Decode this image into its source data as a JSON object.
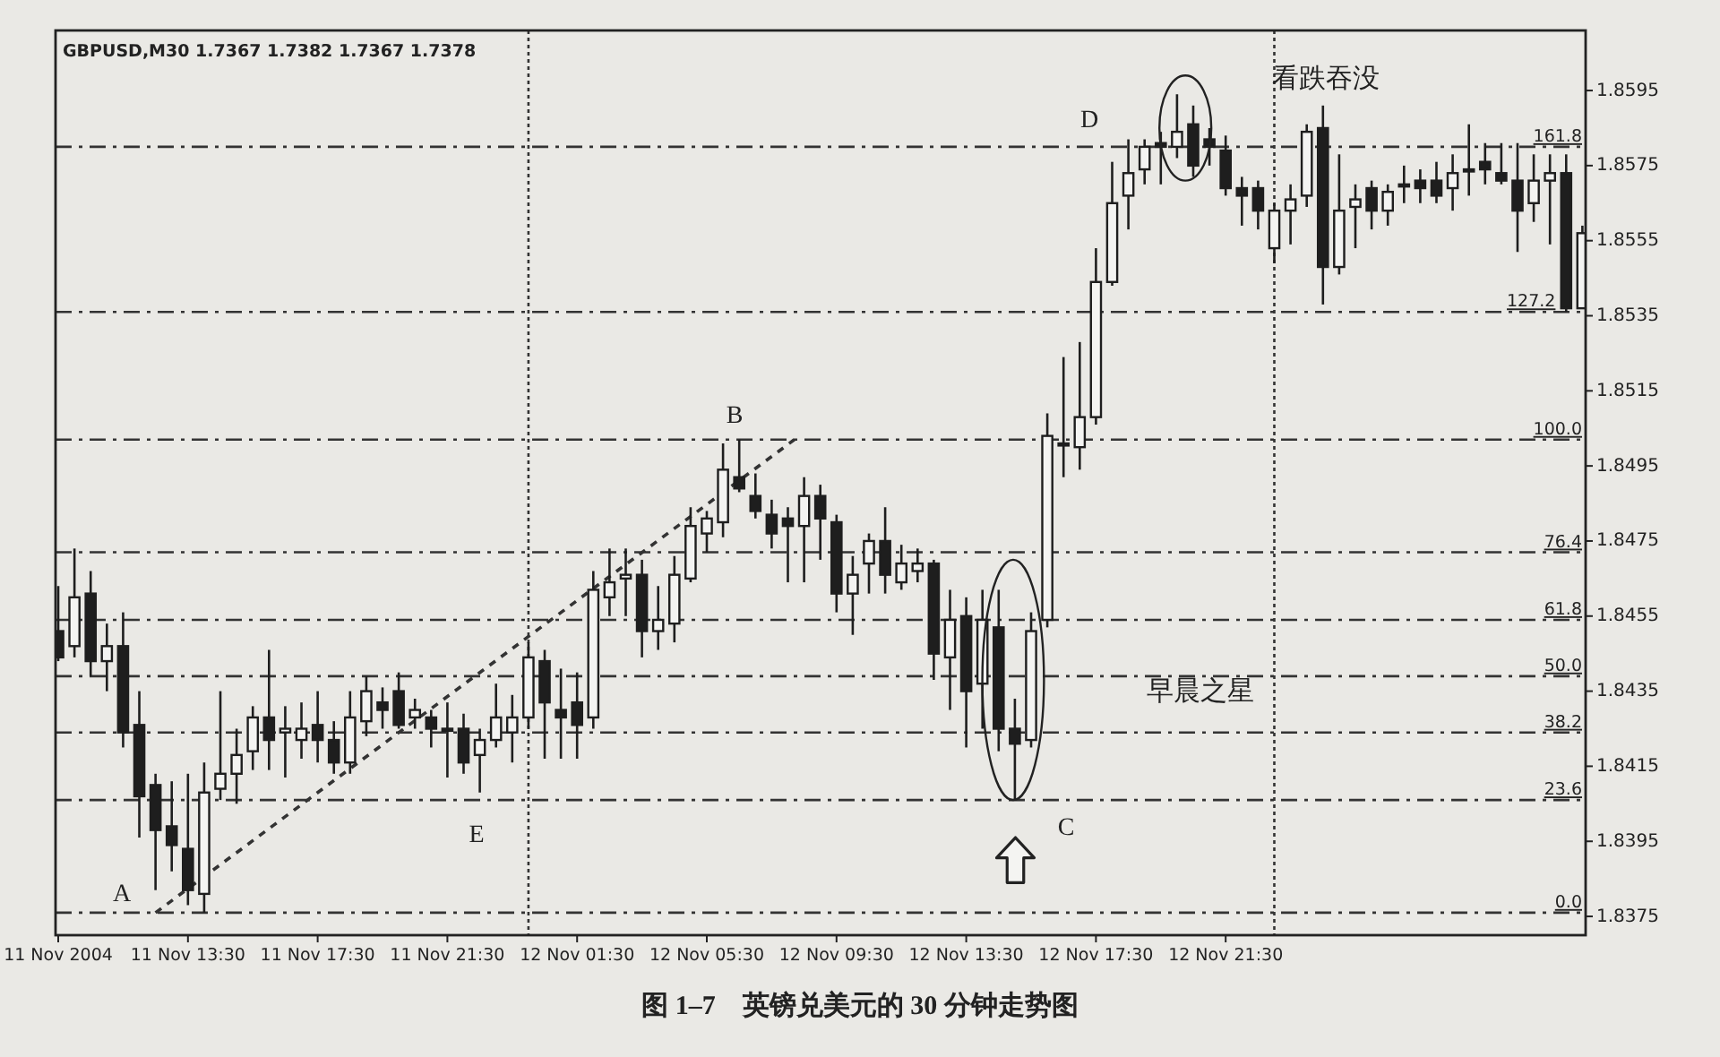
{
  "chart_data": {
    "type": "candlestick",
    "title": "图 1–7　英镑兑美元的 30 分钟走势图",
    "annotations": [
      "GBPUSD,M30  1.7367 1.7382 1.7367 1.7378",
      "A",
      "B",
      "C",
      "D",
      "E",
      "看跌吞没",
      "早晨之星",
      "0.0",
      "23.6",
      "38.2",
      "50.0",
      "61.8",
      "76.4",
      "100.0",
      "127.2",
      "161.8"
    ],
    "color": "#1e1e1e",
    "x": [
      "2004-11-11T09:30",
      "2004-11-11T10:00",
      "2004-11-11T10:30",
      "2004-11-11T11:00",
      "2004-11-11T11:30",
      "2004-11-11T12:00",
      "2004-11-11T12:30",
      "2004-11-11T13:00",
      "2004-11-11T13:30",
      "2004-11-11T14:00",
      "2004-11-11T14:30",
      "2004-11-11T15:00",
      "2004-11-11T15:30",
      "2004-11-11T16:00",
      "2004-11-11T16:30",
      "2004-11-11T17:00",
      "2004-11-11T17:30",
      "2004-11-11T18:00",
      "2004-11-11T18:30",
      "2004-11-11T19:00",
      "2004-11-11T19:30",
      "2004-11-11T20:00",
      "2004-11-11T20:30",
      "2004-11-11T21:00",
      "2004-11-11T21:30",
      "2004-11-11T22:00",
      "2004-11-11T22:30",
      "2004-11-11T23:00",
      "2004-11-11T23:30",
      "2004-11-12T00:00",
      "2004-11-12T00:30",
      "2004-11-12T01:00",
      "2004-11-12T01:30",
      "2004-11-12T02:00",
      "2004-11-12T02:30",
      "2004-11-12T03:00",
      "2004-11-12T03:30",
      "2004-11-12T04:00",
      "2004-11-12T04:30",
      "2004-11-12T05:00",
      "2004-11-12T05:30",
      "2004-11-12T06:00",
      "2004-11-12T06:30",
      "2004-11-12T07:00",
      "2004-11-12T07:30",
      "2004-11-12T08:00",
      "2004-11-12T08:30",
      "2004-11-12T09:00",
      "2004-11-12T09:30",
      "2004-11-12T10:00",
      "2004-11-12T10:30",
      "2004-11-12T11:00",
      "2004-11-12T11:30",
      "2004-11-12T12:00",
      "2004-11-12T12:30",
      "2004-11-12T13:00",
      "2004-11-12T13:30",
      "2004-11-12T14:00",
      "2004-11-12T14:30",
      "2004-11-12T15:00",
      "2004-11-12T15:30",
      "2004-11-12T16:00",
      "2004-11-12T16:30",
      "2004-11-12T17:00",
      "2004-11-12T17:30",
      "2004-11-12T18:00",
      "2004-11-12T18:30",
      "2004-11-12T19:00",
      "2004-11-12T19:30",
      "2004-11-12T20:00",
      "2004-11-12T20:30",
      "2004-11-12T21:00",
      "2004-11-12T21:30",
      "2004-11-12T22:00",
      "2004-11-12T22:30",
      "2004-11-12T23:00",
      "2004-11-12T23:30",
      "2004-11-13T00:00",
      "2004-11-13T00:30",
      "2004-11-13T01:00",
      "2004-11-13T01:30",
      "2004-11-13T02:00",
      "2004-11-13T02:30",
      "2004-11-13T03:00",
      "2004-11-13T03:30",
      "2004-11-13T04:00",
      "2004-11-13T04:30",
      "2004-11-13T05:00",
      "2004-11-13T05:30",
      "2004-11-13T06:00",
      "2004-11-13T06:30",
      "2004-11-13T07:00",
      "2004-11-13T07:30",
      "2004-11-13T08:00",
      "2004-11-13T08:30"
    ],
    "ohlc": [
      [
        1.8451,
        1.8463,
        1.8443,
        1.8444
      ],
      [
        1.8447,
        1.8473,
        1.8444,
        1.846
      ],
      [
        1.8461,
        1.8467,
        1.8439,
        1.8443
      ],
      [
        1.8443,
        1.8453,
        1.8435,
        1.8447
      ],
      [
        1.8447,
        1.8456,
        1.842,
        1.8424
      ],
      [
        1.8426,
        1.8435,
        1.8396,
        1.8407
      ],
      [
        1.841,
        1.8413,
        1.8382,
        1.8398
      ],
      [
        1.8399,
        1.8411,
        1.8387,
        1.8394
      ],
      [
        1.8393,
        1.8413,
        1.8378,
        1.8382
      ],
      [
        1.8381,
        1.8416,
        1.8376,
        1.8408
      ],
      [
        1.8409,
        1.8435,
        1.8406,
        1.8413
      ],
      [
        1.8413,
        1.8425,
        1.8405,
        1.8418
      ],
      [
        1.8419,
        1.8431,
        1.8414,
        1.8428
      ],
      [
        1.8428,
        1.8446,
        1.8414,
        1.8422
      ],
      [
        1.8424,
        1.8431,
        1.8412,
        1.8425
      ],
      [
        1.8422,
        1.8432,
        1.8417,
        1.8425
      ],
      [
        1.8426,
        1.8435,
        1.8416,
        1.8422
      ],
      [
        1.8422,
        1.8427,
        1.8413,
        1.8416
      ],
      [
        1.8416,
        1.8435,
        1.8413,
        1.8428
      ],
      [
        1.8427,
        1.8439,
        1.8423,
        1.8435
      ],
      [
        1.8432,
        1.8436,
        1.8425,
        1.843
      ],
      [
        1.8435,
        1.844,
        1.8425,
        1.8426
      ],
      [
        1.8428,
        1.8433,
        1.8425,
        1.843
      ],
      [
        1.8428,
        1.843,
        1.842,
        1.8425
      ],
      [
        1.8425,
        1.8432,
        1.8412,
        1.8425
      ],
      [
        1.8425,
        1.8429,
        1.8413,
        1.8416
      ],
      [
        1.8418,
        1.8425,
        1.8408,
        1.8422
      ],
      [
        1.8422,
        1.8437,
        1.842,
        1.8428
      ],
      [
        1.8424,
        1.8434,
        1.8416,
        1.8428
      ],
      [
        1.8428,
        1.8448,
        1.8425,
        1.8444
      ],
      [
        1.8443,
        1.8446,
        1.8417,
        1.8432
      ],
      [
        1.843,
        1.8441,
        1.8417,
        1.8428
      ],
      [
        1.8432,
        1.844,
        1.8417,
        1.8426
      ],
      [
        1.8428,
        1.8467,
        1.8425,
        1.8462
      ],
      [
        1.846,
        1.8473,
        1.8455,
        1.8464
      ],
      [
        1.8465,
        1.8473,
        1.8455,
        1.8466
      ],
      [
        1.8466,
        1.847,
        1.8444,
        1.8451
      ],
      [
        1.8451,
        1.8463,
        1.8446,
        1.8454
      ],
      [
        1.8453,
        1.8471,
        1.8448,
        1.8466
      ],
      [
        1.8465,
        1.8484,
        1.8464,
        1.8479
      ],
      [
        1.8477,
        1.8483,
        1.8472,
        1.8481
      ],
      [
        1.848,
        1.8501,
        1.8476,
        1.8494
      ],
      [
        1.8492,
        1.8502,
        1.8488,
        1.8489
      ],
      [
        1.8487,
        1.8493,
        1.8481,
        1.8483
      ],
      [
        1.8482,
        1.8486,
        1.8473,
        1.8477
      ],
      [
        1.8481,
        1.8484,
        1.8464,
        1.8479
      ],
      [
        1.8479,
        1.8492,
        1.8464,
        1.8487
      ],
      [
        1.8487,
        1.849,
        1.847,
        1.8481
      ],
      [
        1.848,
        1.8482,
        1.8456,
        1.8461
      ],
      [
        1.8461,
        1.8471,
        1.845,
        1.8466
      ],
      [
        1.8469,
        1.8477,
        1.8461,
        1.8475
      ],
      [
        1.8475,
        1.8484,
        1.8461,
        1.8466
      ],
      [
        1.8464,
        1.8474,
        1.8462,
        1.8469
      ],
      [
        1.8467,
        1.8473,
        1.8464,
        1.8469
      ],
      [
        1.8469,
        1.847,
        1.8438,
        1.8445
      ],
      [
        1.8444,
        1.8462,
        1.843,
        1.8454
      ],
      [
        1.8455,
        1.846,
        1.842,
        1.8435
      ],
      [
        1.8437,
        1.8462,
        1.8425,
        1.8454
      ],
      [
        1.8452,
        1.8462,
        1.8419,
        1.8425
      ],
      [
        1.8425,
        1.8433,
        1.8406,
        1.8421
      ],
      [
        1.8422,
        1.8456,
        1.842,
        1.8451
      ],
      [
        1.8454,
        1.8509,
        1.8452,
        1.8503
      ],
      [
        1.8501,
        1.8524,
        1.8492,
        1.8501
      ],
      [
        1.85,
        1.8528,
        1.8494,
        1.8508
      ],
      [
        1.8508,
        1.8553,
        1.8506,
        1.8544
      ],
      [
        1.8544,
        1.8576,
        1.8543,
        1.8565
      ],
      [
        1.8567,
        1.8582,
        1.8558,
        1.8573
      ],
      [
        1.8574,
        1.8582,
        1.857,
        1.858
      ],
      [
        1.8581,
        1.8584,
        1.857,
        1.858
      ],
      [
        1.858,
        1.8594,
        1.8577,
        1.8584
      ],
      [
        1.8586,
        1.8591,
        1.8572,
        1.8575
      ],
      [
        1.8582,
        1.8585,
        1.8575,
        1.858
      ],
      [
        1.8579,
        1.8583,
        1.8567,
        1.8569
      ],
      [
        1.8569,
        1.8572,
        1.8559,
        1.8567
      ],
      [
        1.8569,
        1.8571,
        1.8558,
        1.8563
      ],
      [
        1.8553,
        1.8565,
        1.8549,
        1.8563
      ],
      [
        1.8563,
        1.857,
        1.8554,
        1.8566
      ],
      [
        1.8567,
        1.8586,
        1.8564,
        1.8584
      ],
      [
        1.8585,
        1.8591,
        1.8538,
        1.8548
      ],
      [
        1.8548,
        1.8578,
        1.8546,
        1.8563
      ],
      [
        1.8564,
        1.857,
        1.8553,
        1.8566
      ],
      [
        1.8569,
        1.8571,
        1.8558,
        1.8563
      ],
      [
        1.8563,
        1.857,
        1.8559,
        1.8568
      ],
      [
        1.857,
        1.8575,
        1.8565,
        1.857
      ],
      [
        1.8571,
        1.8574,
        1.8565,
        1.8569
      ],
      [
        1.8571,
        1.8576,
        1.8565,
        1.8567
      ],
      [
        1.8569,
        1.8578,
        1.8563,
        1.8573
      ],
      [
        1.8574,
        1.8586,
        1.8567,
        1.8574
      ],
      [
        1.8576,
        1.8581,
        1.857,
        1.8574
      ],
      [
        1.8573,
        1.8581,
        1.857,
        1.8571
      ],
      [
        1.8571,
        1.8581,
        1.8552,
        1.8563
      ],
      [
        1.8565,
        1.8578,
        1.856,
        1.8571
      ],
      [
        1.8571,
        1.8578,
        1.8554,
        1.8573
      ],
      [
        1.8573,
        1.8578,
        1.8536,
        1.8537
      ],
      [
        1.8537,
        1.8559,
        1.8537,
        1.8557
      ]
    ],
    "series": [
      {
        "type": "line",
        "x": [
          "2004-11-11T12:30",
          "2004-11-12T08:12"
        ],
        "values": [
          1.8376,
          1.8502
        ],
        "color": "#333333",
        "line_style": "dashed"
      }
    ],
    "ref_lines": [
      {
        "axis": "y",
        "value": 1.8376,
        "color": "#333333",
        "line_style": "dashed"
      },
      {
        "axis": "y",
        "value": 1.8406,
        "color": "#333333",
        "line_style": "dashed"
      },
      {
        "axis": "y",
        "value": 1.8424,
        "color": "#333333",
        "line_style": "dashed"
      },
      {
        "axis": "y",
        "value": 1.8439,
        "color": "#333333",
        "line_style": "dashed"
      },
      {
        "axis": "y",
        "value": 1.8454,
        "color": "#333333",
        "line_style": "dashed"
      },
      {
        "axis": "y",
        "value": 1.8472,
        "color": "#333333",
        "line_style": "dashed"
      },
      {
        "axis": "y",
        "value": 1.8502,
        "color": "#333333",
        "line_style": "dashed"
      },
      {
        "axis": "y",
        "value": 1.8536,
        "color": "#333333",
        "line_style": "dashed"
      },
      {
        "axis": "y",
        "value": 1.858,
        "color": "#333333",
        "line_style": "dashed"
      },
      {
        "axis": "x",
        "value": "2004-11-12T00:00",
        "color": "#333333",
        "line_style": "dotted"
      },
      {
        "axis": "x",
        "value": "2004-11-12T23:00",
        "color": "#333333",
        "line_style": "dotted"
      }
    ],
    "xlim": [
      "2004-11-11T09:25",
      "2004-11-13T08:36"
    ],
    "xticks": [
      {
        "value": "2004-11-11T09:30",
        "label": "11 Nov 2004"
      },
      {
        "value": "2004-11-11T13:30",
        "label": "11 Nov 13:30"
      },
      {
        "value": "2004-11-11T17:30",
        "label": "11 Nov 17:30"
      },
      {
        "value": "2004-11-11T21:30",
        "label": "11 Nov 21:30"
      },
      {
        "value": "2004-11-12T01:30",
        "label": "12 Nov 01:30"
      },
      {
        "value": "2004-11-12T05:30",
        "label": "12 Nov 05:30"
      },
      {
        "value": "2004-11-12T09:30",
        "label": "12 Nov 09:30"
      },
      {
        "value": "2004-11-12T13:30",
        "label": "12 Nov 13:30"
      },
      {
        "value": "2004-11-12T17:30",
        "label": "12 Nov 17:30"
      },
      {
        "value": "2004-11-12T21:30",
        "label": "12 Nov 21:30"
      }
    ],
    "ylim": [
      1.837,
      1.8611
    ],
    "yticks": [
      1.8375,
      1.8395,
      1.8415,
      1.8435,
      1.8455,
      1.8475,
      1.8495,
      1.8515,
      1.8535,
      1.8555,
      1.8575,
      1.8595
    ]
  }
}
